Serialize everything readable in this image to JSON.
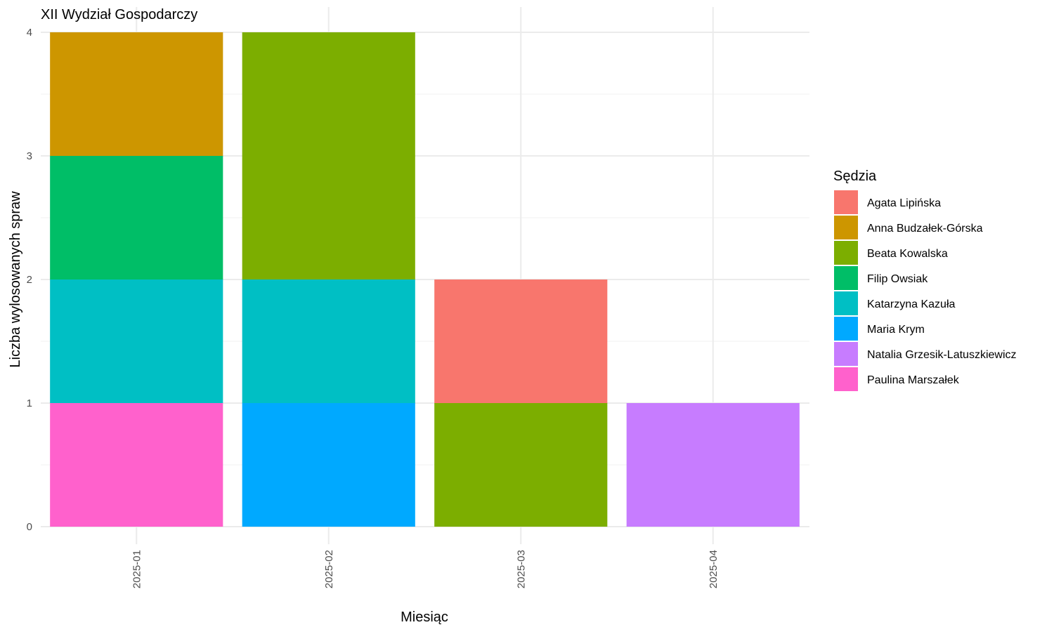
{
  "chart_data": {
    "type": "bar",
    "stacked": true,
    "title": "XII Wydział Gospodarczy",
    "xlabel": "Miesiąc",
    "ylabel": "Liczba wylosowanych spraw",
    "categories": [
      "2025-01",
      "2025-02",
      "2025-03",
      "2025-04"
    ],
    "ylim": [
      0,
      4
    ],
    "yticks": [
      "0",
      "1",
      "2",
      "3",
      "4"
    ],
    "grid": true,
    "legend": {
      "title": "Sędzia",
      "placement": "right"
    },
    "series": [
      {
        "name": "Agata Lipińska",
        "color": "#F8766D",
        "values": [
          0,
          0,
          1,
          0
        ]
      },
      {
        "name": "Anna Budzałek-Górska",
        "color": "#CD9600",
        "values": [
          1,
          0,
          0,
          0
        ]
      },
      {
        "name": "Beata Kowalska",
        "color": "#7CAE00",
        "values": [
          0,
          2,
          1,
          0
        ]
      },
      {
        "name": "Filip Owsiak",
        "color": "#00BE67",
        "values": [
          1,
          0,
          0,
          0
        ]
      },
      {
        "name": "Katarzyna Kazuła",
        "color": "#00BFC4",
        "values": [
          1,
          1,
          0,
          0
        ]
      },
      {
        "name": "Maria Krym",
        "color": "#00A9FF",
        "values": [
          0,
          1,
          0,
          0
        ]
      },
      {
        "name": "Natalia Grzesik-Latuszkiewicz",
        "color": "#C77CFF",
        "values": [
          0,
          0,
          0,
          1
        ]
      },
      {
        "name": "Paulina Marszałek",
        "color": "#FF61CC",
        "values": [
          1,
          0,
          0,
          0
        ]
      }
    ],
    "stack_order_top_to_bottom": [
      "Agata Lipińska",
      "Anna Budzałek-Górska",
      "Beata Kowalska",
      "Filip Owsiak",
      "Katarzyna Kazuła",
      "Maria Krym",
      "Natalia Grzesik-Latuszkiewicz",
      "Paulina Marszałek"
    ]
  }
}
